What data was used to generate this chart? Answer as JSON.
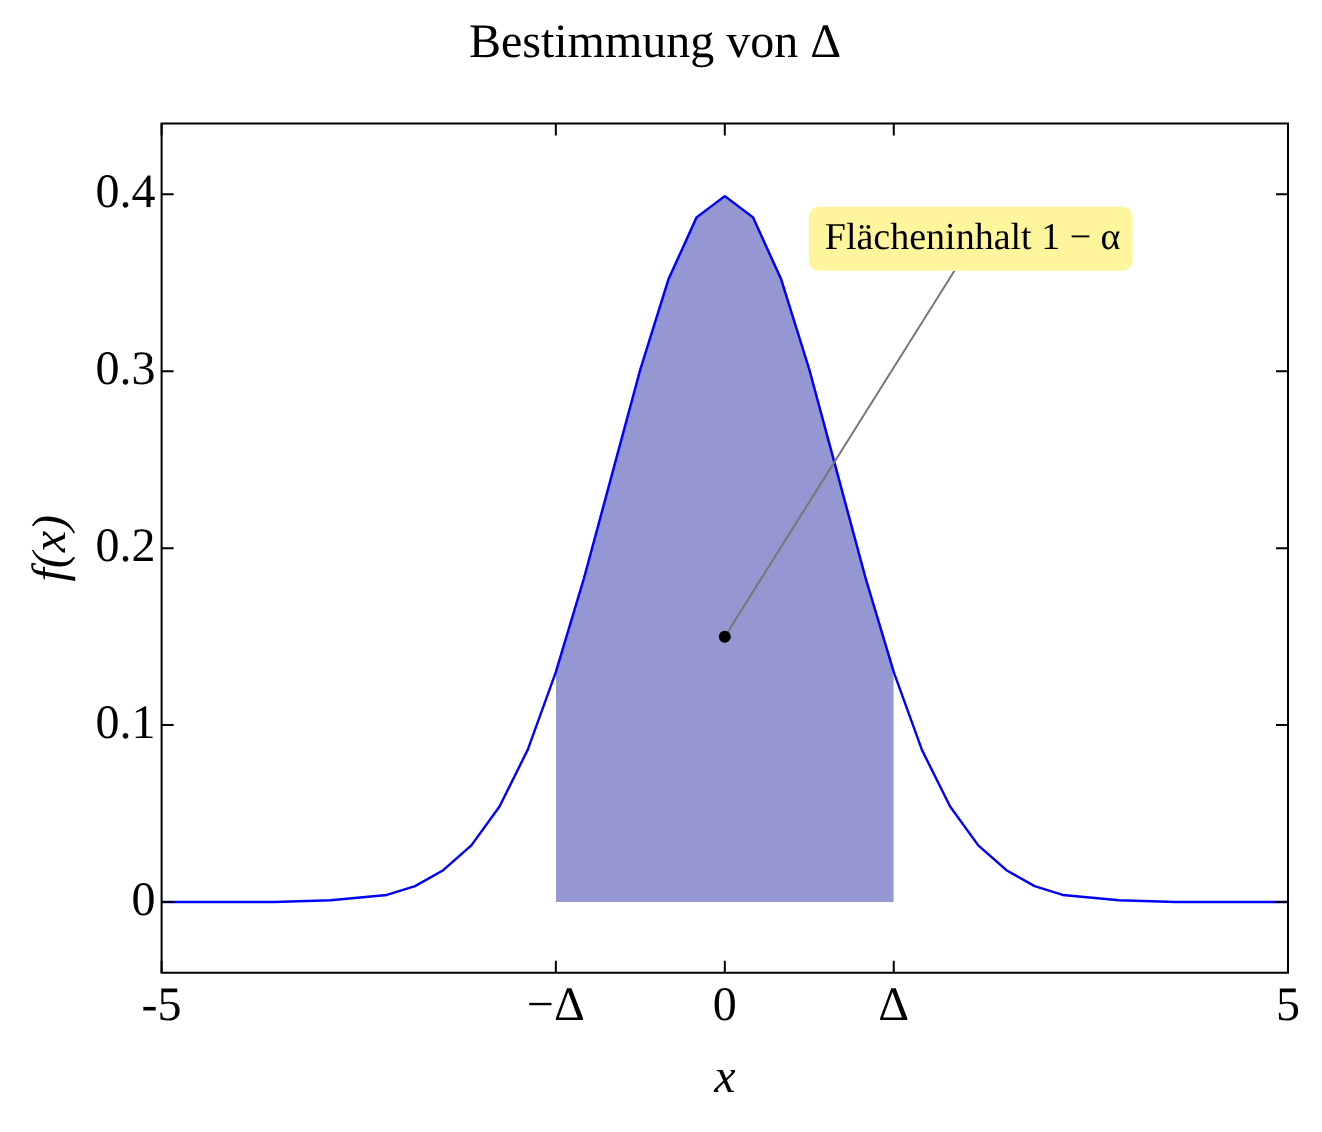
{
  "chart_data": {
    "type": "line",
    "title": "Bestimmung von Δ",
    "xlabel": "x",
    "ylabel": "f(x)",
    "series": [
      {
        "type": "area",
        "color": "#9497d2",
        "x": [
          -1.5,
          -1.25,
          -1,
          -0.75,
          -0.5,
          -0.25,
          0,
          0.25,
          0.5,
          0.75,
          1,
          1.25,
          1.5
        ],
        "values": [
          0.13,
          0.183,
          0.242,
          0.301,
          0.352,
          0.387,
          0.399,
          0.387,
          0.352,
          0.301,
          0.242,
          0.183,
          0.13
        ]
      },
      {
        "type": "line",
        "color": "#0000ff",
        "x": [
          -5,
          -4.5,
          -4,
          -3.5,
          -3,
          -2.75,
          -2.5,
          -2.25,
          -2,
          -1.75,
          -1.5,
          -1.25,
          -1,
          -0.75,
          -0.5,
          -0.25,
          0,
          0.25,
          0.5,
          0.75,
          1,
          1.25,
          1.5,
          1.75,
          2,
          2.25,
          2.5,
          2.75,
          3,
          3.5,
          4,
          4.5,
          5
        ],
        "values": [
          0,
          0,
          0,
          0.001,
          0.004,
          0.009,
          0.018,
          0.032,
          0.054,
          0.086,
          0.13,
          0.183,
          0.242,
          0.301,
          0.352,
          0.387,
          0.399,
          0.387,
          0.352,
          0.301,
          0.242,
          0.183,
          0.13,
          0.086,
          0.054,
          0.032,
          0.018,
          0.009,
          0.004,
          0.001,
          0,
          0,
          0
        ]
      }
    ],
    "xlim": [
      -5,
      5
    ],
    "xticks": [
      -5,
      {
        "value": -1.5,
        "label": "−Δ"
      },
      0,
      {
        "value": 1.5,
        "label": "Δ"
      },
      5
    ],
    "ylim": [
      -0.04,
      0.44
    ],
    "yticks": [
      0,
      0.1,
      0.2,
      0.3,
      0.4
    ],
    "grid": false,
    "legend": false,
    "marker": "none",
    "annotations": [
      {
        "text": "Flächeninhalt 1 − α",
        "x": 0,
        "y": 0.15
      }
    ]
  }
}
